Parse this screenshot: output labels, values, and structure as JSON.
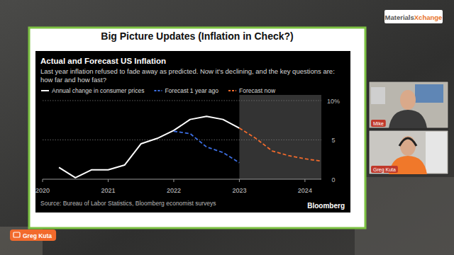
{
  "page": {
    "logo": "MaterialsXchange",
    "slide_title": "Big Picture Updates (Inflation in Check?)",
    "participants": [
      "Mike",
      "Greg Kuta"
    ],
    "speaker": "Greg Kuta"
  },
  "chart_data": {
    "type": "line",
    "title": "Actual and Forecast US Inflation",
    "subtitle": "Last year inflation refused to fade away as predicted. Now it's declining, and the key questions are: how far and how fast?",
    "source": "Source: Bureau of Labor Statistics, Bloomberg economist surveys",
    "brand": "Bloomberg",
    "series": [
      {
        "name": "Annual change in consumer prices",
        "color": "#ffffff",
        "line_style": "solid",
        "x": [
          2020.25,
          2020.5,
          2020.75,
          2021.0,
          2021.25,
          2021.5,
          2021.75,
          2022.0,
          2022.25,
          2022.5,
          2022.75,
          2023.0
        ],
        "values": [
          1.5,
          0.2,
          1.2,
          1.2,
          1.8,
          4.5,
          5.2,
          6.2,
          7.6,
          8.0,
          7.6,
          6.5
        ]
      },
      {
        "name": "Forecast 1 year ago",
        "color": "#3d6fe3",
        "line_style": "dashed",
        "x": [
          2022.0,
          2022.25,
          2022.5,
          2022.75,
          2023.0
        ],
        "values": [
          6.1,
          5.8,
          4.1,
          3.4,
          2.1
        ]
      },
      {
        "name": "Forecast now",
        "color": "#f26a2c",
        "line_style": "dashed",
        "x": [
          2023.0,
          2023.25,
          2023.5,
          2023.75,
          2024.0,
          2024.25
        ],
        "values": [
          6.5,
          5.2,
          3.6,
          3.0,
          2.6,
          2.3
        ]
      }
    ],
    "xlim": [
      2020,
      2024.25
    ],
    "xticks": [
      2020,
      2021,
      2022,
      2023,
      2024
    ],
    "ylim": [
      0,
      10
    ],
    "yticks": [
      0,
      5,
      {
        "value": 10,
        "label": "10%"
      }
    ],
    "shaded_range": [
      2023,
      2024.25
    ],
    "grid": true,
    "legend": "top"
  }
}
